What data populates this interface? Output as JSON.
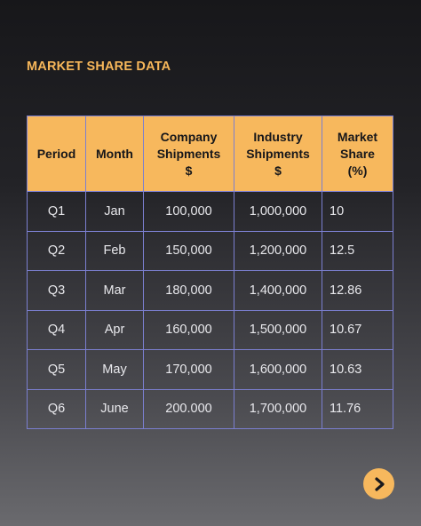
{
  "title": "MARKET SHARE DATA",
  "table": {
    "headers": {
      "period": "Period",
      "month": "Month",
      "company_line1": "Company",
      "company_line2": "Shipments",
      "company_line3": "$",
      "industry_line1": "Industry",
      "industry_line2": "Shipments",
      "industry_line3": "$",
      "share_line1": "Market",
      "share_line2": "Share",
      "share_line3": "(%)"
    },
    "rows": [
      {
        "period": "Q1",
        "month": "Jan",
        "company": "100,000",
        "industry": "1,000,000",
        "share": "10"
      },
      {
        "period": "Q2",
        "month": "Feb",
        "company": "150,000",
        "industry": "1,200,000",
        "share": "12.5"
      },
      {
        "period": "Q3",
        "month": "Mar",
        "company": "180,000",
        "industry": "1,400,000",
        "share": "12.86"
      },
      {
        "period": "Q4",
        "month": "Apr",
        "company": "160,000",
        "industry": "1,500,000",
        "share": "10.67"
      },
      {
        "period": "Q5",
        "month": "May",
        "company": "170,000",
        "industry": "1,600,000",
        "share": "10.63"
      },
      {
        "period": "Q6",
        "month": "June",
        "company": "200.000",
        "industry": "1,700,000",
        "share": "11.76"
      }
    ]
  },
  "next_button": {
    "icon": "chevron-right-icon"
  },
  "colors": {
    "accent": "#f7b85d",
    "grid": "#7b7fd0",
    "text": "#e8e8ec"
  }
}
